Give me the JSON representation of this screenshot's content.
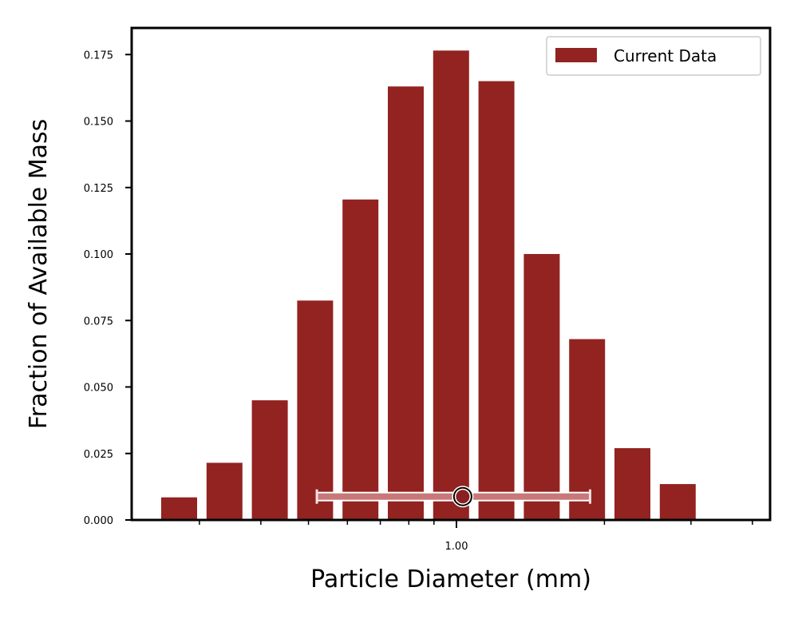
{
  "chart_data": {
    "type": "bar",
    "xlabel": "Particle Diameter (mm)",
    "ylabel": "Fraction of Available Mass",
    "x_scale": "log",
    "ylim": [
      0,
      0.185
    ],
    "y_ticks": [
      "0.000",
      "0.025",
      "0.050",
      "0.075",
      "0.100",
      "0.125",
      "0.150",
      "0.175"
    ],
    "x_ticks": [
      {
        "value": 1.0,
        "label": "1.00"
      }
    ],
    "grid": false,
    "legend_position": "top-right",
    "series": [
      {
        "name": "Current Data",
        "color": "#922320",
        "values": [
          0.0085,
          0.0215,
          0.045,
          0.0825,
          0.1205,
          0.163,
          0.1765,
          0.165,
          0.1,
          0.068,
          0.027,
          0.0135
        ]
      }
    ],
    "summary_marker": {
      "y": 0.0088,
      "center_x": 1.03,
      "range": [
        0.52,
        1.87
      ],
      "bar_color": "#c87878",
      "marker_color": "#8b2020"
    }
  }
}
